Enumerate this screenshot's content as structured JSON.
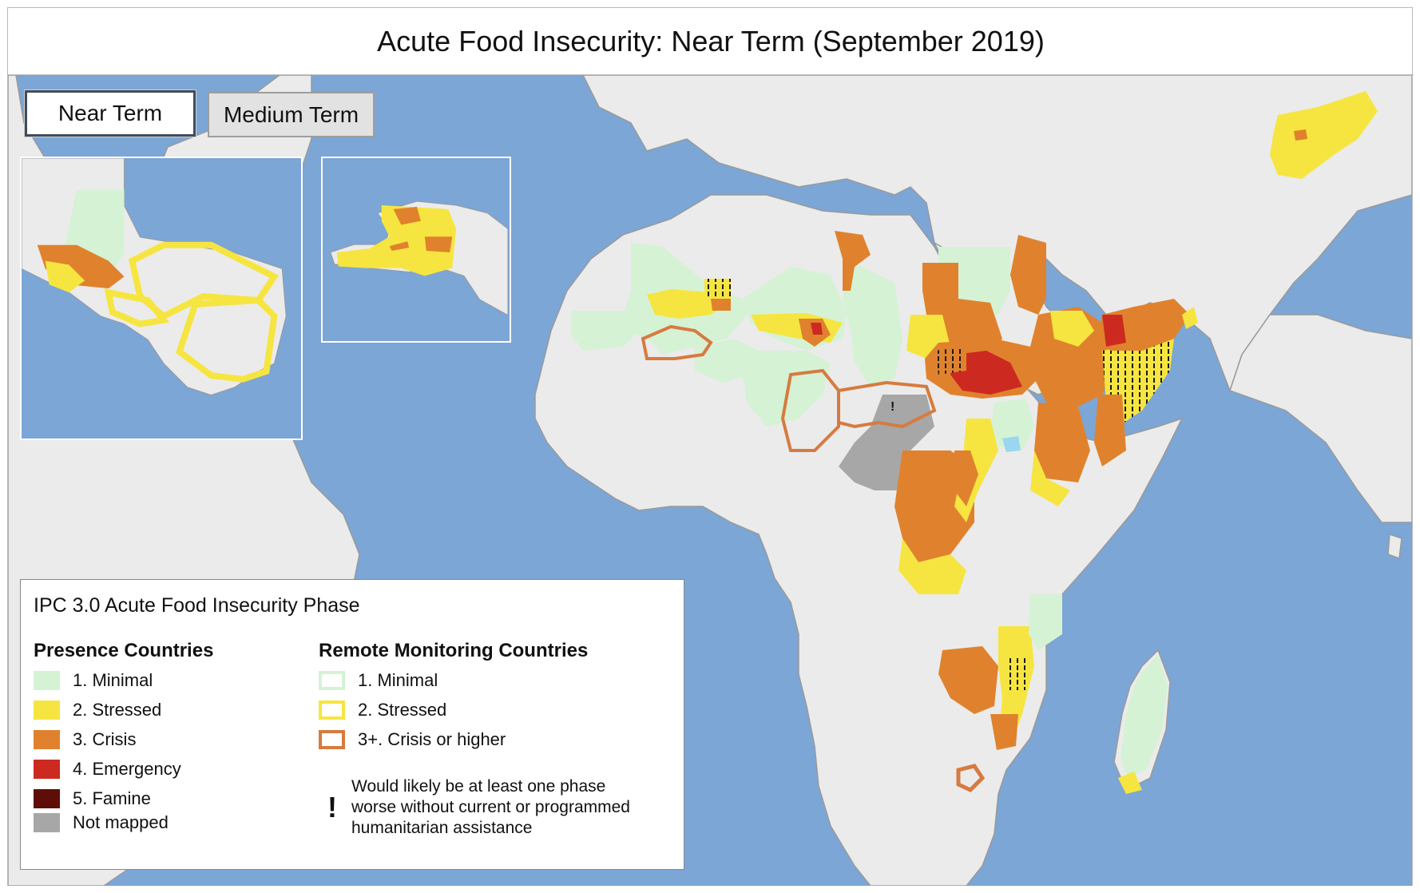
{
  "title": "Acute Food Insecurity: Near Term (September 2019)",
  "tabs": {
    "near_term": "Near Term",
    "medium_term": "Medium Term"
  },
  "legend": {
    "title": "IPC 3.0 Acute Food Insecurity Phase",
    "presence_heading": "Presence Countries",
    "remote_heading": "Remote Monitoring Countries",
    "presence_items": [
      {
        "label": "1. Minimal",
        "color": "#d5f2d5"
      },
      {
        "label": "2. Stressed",
        "color": "#f6e540"
      },
      {
        "label": "3. Crisis",
        "color": "#e0822d"
      },
      {
        "label": "4. Emergency",
        "color": "#cc2a20"
      },
      {
        "label": "5. Famine",
        "color": "#5e0e07"
      },
      {
        "label": "Not mapped",
        "color": "#a7a7a7"
      }
    ],
    "remote_items": [
      {
        "label": "1. Minimal",
        "color": "#d5f2d5"
      },
      {
        "label": "2. Stressed",
        "color": "#f6e540"
      },
      {
        "label": "3+. Crisis or higher",
        "color": "#d67b3f"
      }
    ],
    "assistance_symbol": "!",
    "assistance_note": "Would likely be at least one phase worse without current or programmed humanitarian assistance"
  },
  "map_colors": {
    "ocean": "#7ba6d6",
    "land": "#ebebeb",
    "border": "#9a9a9a"
  },
  "car_marker": "!"
}
